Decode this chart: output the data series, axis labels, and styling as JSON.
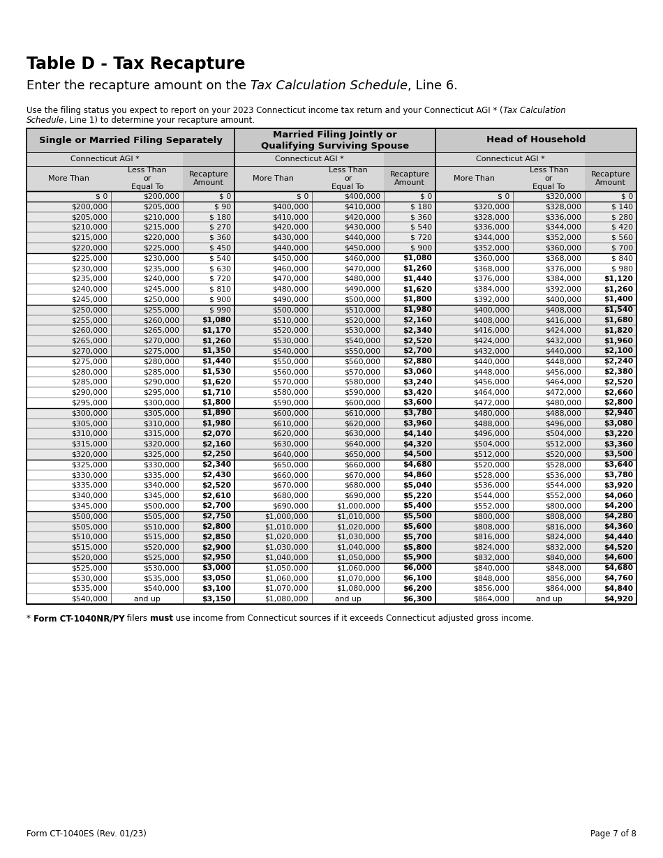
{
  "title": "Table D - Tax Recapture",
  "page_footer_left": "Form CT-1040ES (Rev. 01/23)",
  "page_footer_right": "Page 7 of 8",
  "table_data": [
    [
      "$ 0",
      "$200,000",
      "$ 0",
      "$ 0",
      "$400,000",
      "$ 0",
      "$ 0",
      "$320,000",
      "$ 0"
    ],
    [
      "$200,000",
      "$205,000",
      "$ 90",
      "$400,000",
      "$410,000",
      "$ 180",
      "$320,000",
      "$328,000",
      "$ 140"
    ],
    [
      "$205,000",
      "$210,000",
      "$ 180",
      "$410,000",
      "$420,000",
      "$ 360",
      "$328,000",
      "$336,000",
      "$ 280"
    ],
    [
      "$210,000",
      "$215,000",
      "$ 270",
      "$420,000",
      "$430,000",
      "$ 540",
      "$336,000",
      "$344,000",
      "$ 420"
    ],
    [
      "$215,000",
      "$220,000",
      "$ 360",
      "$430,000",
      "$440,000",
      "$ 720",
      "$344,000",
      "$352,000",
      "$ 560"
    ],
    [
      "$220,000",
      "$225,000",
      "$ 450",
      "$440,000",
      "$450,000",
      "$ 900",
      "$352,000",
      "$360,000",
      "$ 700"
    ],
    [
      "$225,000",
      "$230,000",
      "$ 540",
      "$450,000",
      "$460,000",
      "$1,080",
      "$360,000",
      "$368,000",
      "$ 840"
    ],
    [
      "$230,000",
      "$235,000",
      "$ 630",
      "$460,000",
      "$470,000",
      "$1,260",
      "$368,000",
      "$376,000",
      "$ 980"
    ],
    [
      "$235,000",
      "$240,000",
      "$ 720",
      "$470,000",
      "$480,000",
      "$1,440",
      "$376,000",
      "$384,000",
      "$1,120"
    ],
    [
      "$240,000",
      "$245,000",
      "$ 810",
      "$480,000",
      "$490,000",
      "$1,620",
      "$384,000",
      "$392,000",
      "$1,260"
    ],
    [
      "$245,000",
      "$250,000",
      "$ 900",
      "$490,000",
      "$500,000",
      "$1,800",
      "$392,000",
      "$400,000",
      "$1,400"
    ],
    [
      "$250,000",
      "$255,000",
      "$ 990",
      "$500,000",
      "$510,000",
      "$1,980",
      "$400,000",
      "$408,000",
      "$1,540"
    ],
    [
      "$255,000",
      "$260,000",
      "$1,080",
      "$510,000",
      "$520,000",
      "$2,160",
      "$408,000",
      "$416,000",
      "$1,680"
    ],
    [
      "$260,000",
      "$265,000",
      "$1,170",
      "$520,000",
      "$530,000",
      "$2,340",
      "$416,000",
      "$424,000",
      "$1,820"
    ],
    [
      "$265,000",
      "$270,000",
      "$1,260",
      "$530,000",
      "$540,000",
      "$2,520",
      "$424,000",
      "$432,000",
      "$1,960"
    ],
    [
      "$270,000",
      "$275,000",
      "$1,350",
      "$540,000",
      "$550,000",
      "$2,700",
      "$432,000",
      "$440,000",
      "$2,100"
    ],
    [
      "$275,000",
      "$280,000",
      "$1,440",
      "$550,000",
      "$560,000",
      "$2,880",
      "$440,000",
      "$448,000",
      "$2,240"
    ],
    [
      "$280,000",
      "$285,000",
      "$1,530",
      "$560,000",
      "$570,000",
      "$3,060",
      "$448,000",
      "$456,000",
      "$2,380"
    ],
    [
      "$285,000",
      "$290,000",
      "$1,620",
      "$570,000",
      "$580,000",
      "$3,240",
      "$456,000",
      "$464,000",
      "$2,520"
    ],
    [
      "$290,000",
      "$295,000",
      "$1,710",
      "$580,000",
      "$590,000",
      "$3,420",
      "$464,000",
      "$472,000",
      "$2,660"
    ],
    [
      "$295,000",
      "$300,000",
      "$1,800",
      "$590,000",
      "$600,000",
      "$3,600",
      "$472,000",
      "$480,000",
      "$2,800"
    ],
    [
      "$300,000",
      "$305,000",
      "$1,890",
      "$600,000",
      "$610,000",
      "$3,780",
      "$480,000",
      "$488,000",
      "$2,940"
    ],
    [
      "$305,000",
      "$310,000",
      "$1,980",
      "$610,000",
      "$620,000",
      "$3,960",
      "$488,000",
      "$496,000",
      "$3,080"
    ],
    [
      "$310,000",
      "$315,000",
      "$2,070",
      "$620,000",
      "$630,000",
      "$4,140",
      "$496,000",
      "$504,000",
      "$3,220"
    ],
    [
      "$315,000",
      "$320,000",
      "$2,160",
      "$630,000",
      "$640,000",
      "$4,320",
      "$504,000",
      "$512,000",
      "$3,360"
    ],
    [
      "$320,000",
      "$325,000",
      "$2,250",
      "$640,000",
      "$650,000",
      "$4,500",
      "$512,000",
      "$520,000",
      "$3,500"
    ],
    [
      "$325,000",
      "$330,000",
      "$2,340",
      "$650,000",
      "$660,000",
      "$4,680",
      "$520,000",
      "$528,000",
      "$3,640"
    ],
    [
      "$330,000",
      "$335,000",
      "$2,430",
      "$660,000",
      "$670,000",
      "$4,860",
      "$528,000",
      "$536,000",
      "$3,780"
    ],
    [
      "$335,000",
      "$340,000",
      "$2,520",
      "$670,000",
      "$680,000",
      "$5,040",
      "$536,000",
      "$544,000",
      "$3,920"
    ],
    [
      "$340,000",
      "$345,000",
      "$2,610",
      "$680,000",
      "$690,000",
      "$5,220",
      "$544,000",
      "$552,000",
      "$4,060"
    ],
    [
      "$345,000",
      "$500,000",
      "$2,700",
      "$690,000",
      "$1,000,000",
      "$5,400",
      "$552,000",
      "$800,000",
      "$4,200"
    ],
    [
      "$500,000",
      "$505,000",
      "$2,750",
      "$1,000,000",
      "$1,010,000",
      "$5,500",
      "$800,000",
      "$808,000",
      "$4,280"
    ],
    [
      "$505,000",
      "$510,000",
      "$2,800",
      "$1,010,000",
      "$1,020,000",
      "$5,600",
      "$808,000",
      "$816,000",
      "$4,360"
    ],
    [
      "$510,000",
      "$515,000",
      "$2,850",
      "$1,020,000",
      "$1,030,000",
      "$5,700",
      "$816,000",
      "$824,000",
      "$4,440"
    ],
    [
      "$515,000",
      "$520,000",
      "$2,900",
      "$1,030,000",
      "$1,040,000",
      "$5,800",
      "$824,000",
      "$832,000",
      "$4,520"
    ],
    [
      "$520,000",
      "$525,000",
      "$2,950",
      "$1,040,000",
      "$1,050,000",
      "$5,900",
      "$832,000",
      "$840,000",
      "$4,600"
    ],
    [
      "$525,000",
      "$530,000",
      "$3,000",
      "$1,050,000",
      "$1,060,000",
      "$6,000",
      "$840,000",
      "$848,000",
      "$4,680"
    ],
    [
      "$530,000",
      "$535,000",
      "$3,050",
      "$1,060,000",
      "$1,070,000",
      "$6,100",
      "$848,000",
      "$856,000",
      "$4,760"
    ],
    [
      "$535,000",
      "$540,000",
      "$3,100",
      "$1,070,000",
      "$1,080,000",
      "$6,200",
      "$856,000",
      "$864,000",
      "$4,840"
    ],
    [
      "$540,000",
      "and up",
      "$3,150",
      "$1,080,000",
      "and up",
      "$6,300",
      "$864,000",
      "and up",
      "$4,920"
    ]
  ],
  "background_color": "#ffffff",
  "header_bg": "#c8c8c8",
  "header_inner_bg": "#d8d8d8",
  "shaded_bg": "#e8e8e8",
  "unshaded_bg": "#ffffff"
}
